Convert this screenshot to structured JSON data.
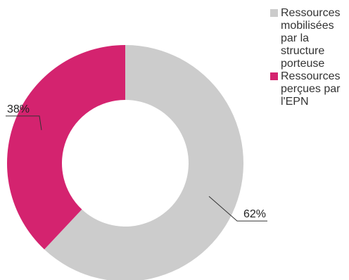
{
  "chart_data": {
    "type": "pie",
    "donut": true,
    "title": "",
    "legend_position": "top-right",
    "slices": [
      {
        "label": "Ressources mobilisées par la structure porteuse",
        "value": 62,
        "display": "62%",
        "color": "#cccccc"
      },
      {
        "label": "Ressources perçues par l'EPN",
        "value": 38,
        "display": "38%",
        "color": "#d4236f"
      }
    ]
  }
}
